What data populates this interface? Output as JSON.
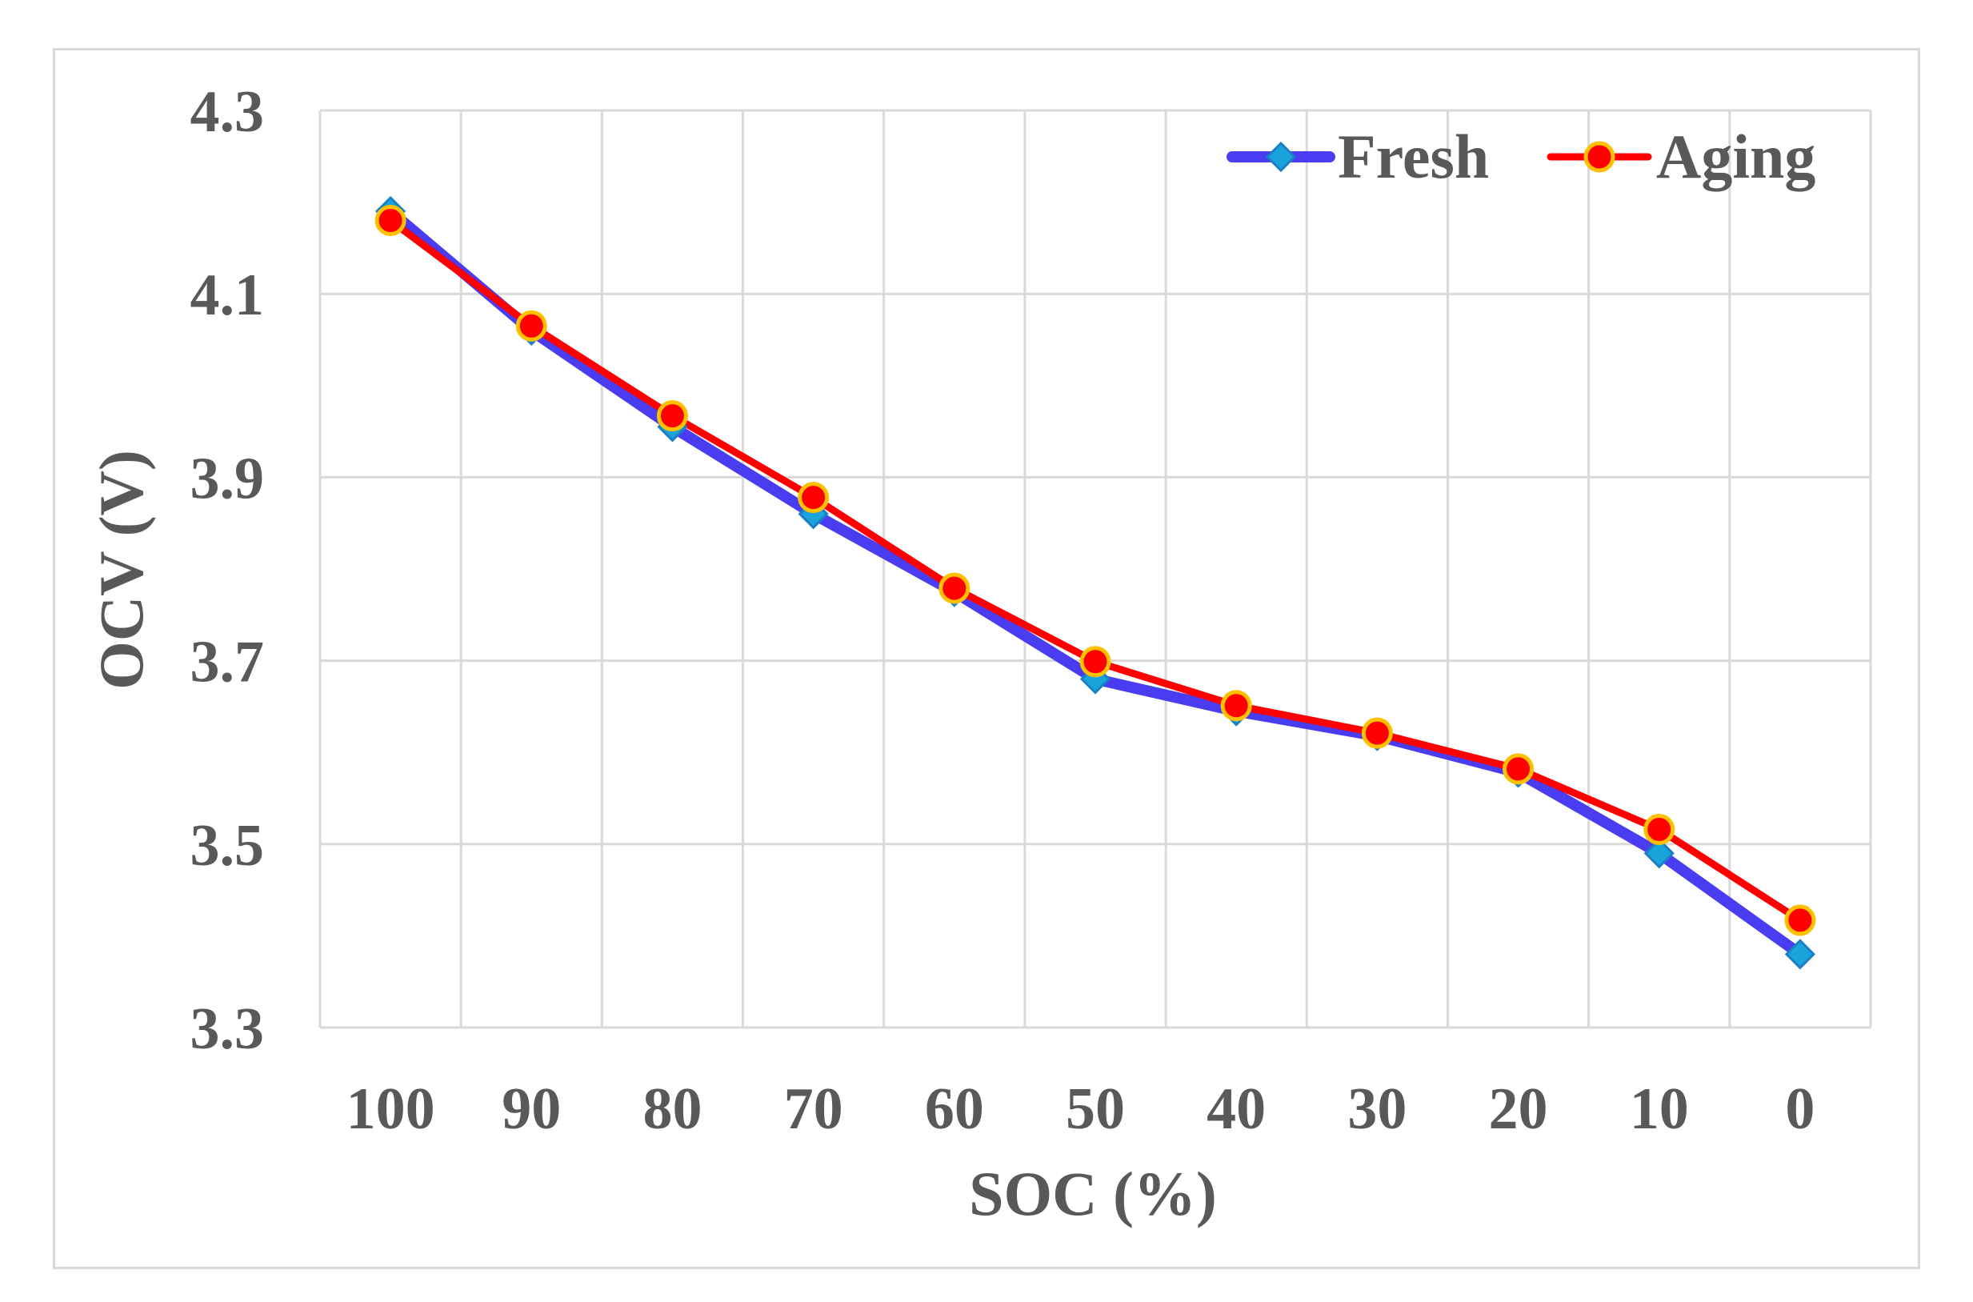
{
  "chart_data": {
    "type": "line",
    "title": "",
    "xlabel": "SOC (%)",
    "ylabel": "OCV (V)",
    "categories": [
      "100",
      "90",
      "80",
      "70",
      "60",
      "50",
      "40",
      "30",
      "20",
      "10",
      "0"
    ],
    "ylim": [
      3.3,
      4.3
    ],
    "yticks": [
      "3.3",
      "3.5",
      "3.7",
      "3.9",
      "4.1",
      "4.3"
    ],
    "grid": true,
    "legend_position": "top-right",
    "series": [
      {
        "name": "Fresh",
        "color": "#4a3cf0",
        "marker": "diamond",
        "marker_color": "#1ba3dc",
        "values": [
          4.19,
          4.06,
          3.955,
          3.86,
          3.775,
          3.68,
          3.645,
          3.618,
          3.578,
          3.49,
          3.38
        ]
      },
      {
        "name": "Aging",
        "color": "#ff0000",
        "marker": "circle",
        "marker_color": "#ffc000",
        "values": [
          4.18,
          4.065,
          3.967,
          3.878,
          3.779,
          3.699,
          3.651,
          3.621,
          3.582,
          3.516,
          3.417
        ]
      }
    ]
  }
}
